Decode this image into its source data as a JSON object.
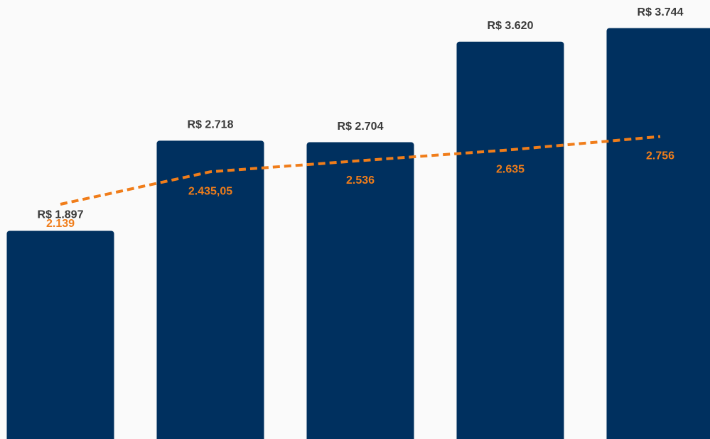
{
  "chart_data": {
    "type": "bar",
    "ylim": [
      0,
      4000
    ],
    "series": [
      {
        "type": "bar",
        "color": "#00305f",
        "values": [
          1897,
          2718,
          2704,
          3620,
          3744
        ],
        "value_labels": [
          "R$ 1.897",
          "R$ 2.718",
          "R$ 2.704",
          "R$ 3.620",
          "R$ 3.744"
        ]
      },
      {
        "type": "line",
        "color": "#f07d1a",
        "values": [
          2139,
          2435.05,
          2536,
          2635,
          2756
        ],
        "value_labels": [
          "2.139",
          "2.435,05",
          "2.536",
          "2.635",
          "2.756"
        ]
      }
    ]
  }
}
